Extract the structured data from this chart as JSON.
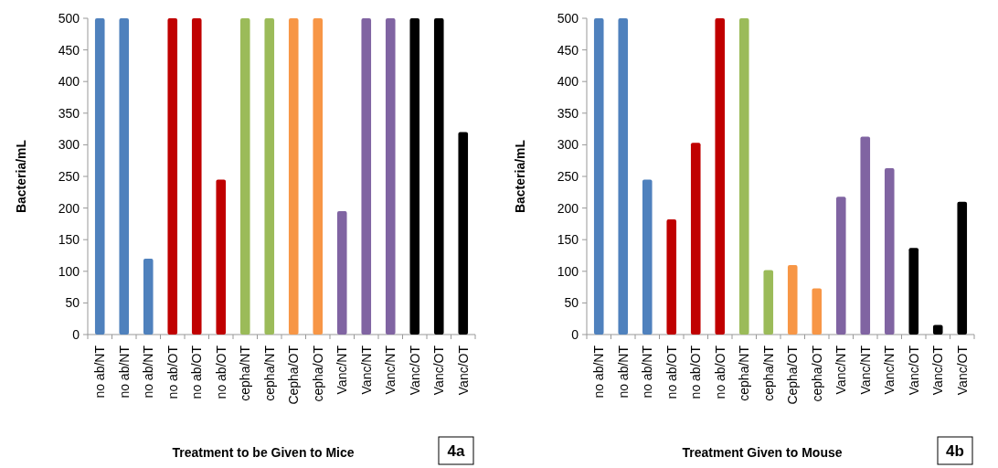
{
  "chart_data": [
    {
      "type": "bar",
      "xlabel": "Treatment to be Given to Mice",
      "ylabel": "Bacteria/mL",
      "annotations": [
        "4a"
      ],
      "categories": [
        "no ab/NT",
        "no ab/NT",
        "no ab/NT",
        "no ab/OT",
        "no ab/OT",
        "no ab/OT",
        "cepha/NT",
        "cepha/NT",
        "Cepha/OT",
        "cepha/OT",
        "Vanc/NT",
        "Vanc/NT",
        "Vanc/NT",
        "Vanc/OT",
        "Vanc/OT",
        "Vanc/OT"
      ],
      "values": [
        500,
        500,
        120,
        500,
        500,
        245,
        500,
        500,
        500,
        500,
        195,
        500,
        500,
        500,
        500,
        320
      ],
      "colors": [
        "#4f81bd",
        "#4f81bd",
        "#4f81bd",
        "#c00000",
        "#c00000",
        "#c00000",
        "#9bbb59",
        "#9bbb59",
        "#f79646",
        "#f79646",
        "#8064a2",
        "#8064a2",
        "#8064a2",
        "#000000",
        "#000000",
        "#000000"
      ],
      "ylim": [
        0,
        500
      ],
      "yticks": [
        0,
        50,
        100,
        150,
        200,
        250,
        300,
        350,
        400,
        450,
        500
      ],
      "grid": false
    },
    {
      "type": "bar",
      "xlabel": "Treatment Given to Mouse",
      "ylabel": "Bacteria/mL",
      "annotations": [
        "4b"
      ],
      "categories": [
        "no ab/NT",
        "no ab/NT",
        "no ab/NT",
        "no ab/OT",
        "no ab/OT",
        "no ab/OT",
        "cepha/NT",
        "cepha/NT",
        "Cepha/OT",
        "cepha/OT",
        "Vanc/NT",
        "Vanc/NT",
        "Vanc/NT",
        "Vanc/OT",
        "Vanc/OT",
        "Vanc/OT"
      ],
      "values": [
        500,
        500,
        245,
        182,
        303,
        500,
        500,
        102,
        110,
        73,
        218,
        313,
        263,
        137,
        15,
        210
      ],
      "colors": [
        "#4f81bd",
        "#4f81bd",
        "#4f81bd",
        "#c00000",
        "#c00000",
        "#c00000",
        "#9bbb59",
        "#9bbb59",
        "#f79646",
        "#f79646",
        "#8064a2",
        "#8064a2",
        "#8064a2",
        "#000000",
        "#000000",
        "#000000"
      ],
      "ylim": [
        0,
        500
      ],
      "yticks": [
        0,
        50,
        100,
        150,
        200,
        250,
        300,
        350,
        400,
        450,
        500
      ],
      "grid": false
    }
  ]
}
